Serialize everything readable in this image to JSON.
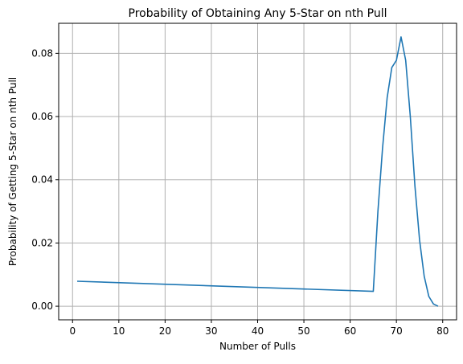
{
  "chart_data": {
    "type": "line",
    "title": "Probability of Obtaining Any 5-Star on nth Pull",
    "xlabel": "Number of Pulls",
    "ylabel": "Probability of Getting 5-Star on nth Pull",
    "xlim": [
      -3,
      83
    ],
    "ylim": [
      -0.0043,
      0.0895
    ],
    "xticks": [
      0,
      10,
      20,
      30,
      40,
      50,
      60,
      70,
      80
    ],
    "xtick_labels": [
      "0",
      "10",
      "20",
      "30",
      "40",
      "50",
      "60",
      "70",
      "80"
    ],
    "yticks": [
      0.0,
      0.02,
      0.04,
      0.06,
      0.08
    ],
    "ytick_labels": [
      "0.00",
      "0.02",
      "0.04",
      "0.06",
      "0.08"
    ],
    "grid": true,
    "series": [
      {
        "color": "#1f77b4",
        "x": [
          1,
          65,
          66,
          67,
          68,
          69,
          70,
          71,
          72,
          73,
          74,
          75,
          76,
          77,
          78,
          79
        ],
        "y": [
          0.0079,
          0.0047,
          0.03,
          0.05,
          0.066,
          0.0755,
          0.0778,
          0.0852,
          0.0778,
          0.06,
          0.038,
          0.021,
          0.0095,
          0.0031,
          0.0007,
          0.0
        ]
      }
    ]
  }
}
